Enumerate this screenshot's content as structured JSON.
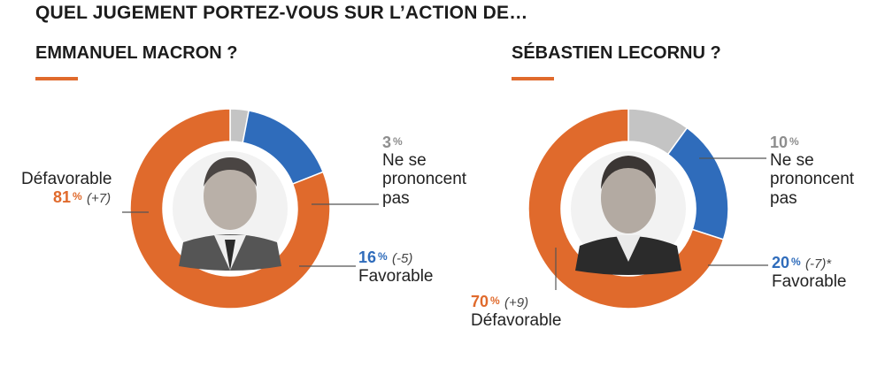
{
  "header": {
    "question": "QUEL JUGEMENT PORTEZ-VOUS SUR L’ACTION DE…"
  },
  "panels": {
    "left": {
      "title": "EMMANUEL MACRON ?"
    },
    "right": {
      "title": "SÉBASTIEN LECORNU ?"
    }
  },
  "colors": {
    "defavorable": "#e06a2c",
    "favorable": "#2f6cbb",
    "nsp": "#c4c4c4"
  },
  "chart_data": [
    {
      "type": "pie",
      "title": "EMMANUEL MACRON ?",
      "categories": [
        "Défavorable",
        "Favorable",
        "Ne se prononcent pas"
      ],
      "values": [
        81,
        16,
        3
      ],
      "changes": [
        "(+7)",
        "(-5)",
        ""
      ],
      "labels": {
        "defavorable": {
          "name": "Défavorable",
          "pct": "81",
          "unit": "%",
          "delta": "(+7)"
        },
        "favorable": {
          "name": "Favorable",
          "pct": "16",
          "unit": "%",
          "delta": "(-5)"
        },
        "nsp": {
          "name_1": "Ne se",
          "name_2": "prononcent",
          "name_3": "pas",
          "pct": "3",
          "unit": "%",
          "delta": ""
        }
      }
    },
    {
      "type": "pie",
      "title": "SÉBASTIEN LECORNU ?",
      "categories": [
        "Défavorable",
        "Favorable",
        "Ne se prononcent pas"
      ],
      "values": [
        70,
        20,
        10
      ],
      "changes": [
        "(+9)",
        "(-7)*",
        ""
      ],
      "labels": {
        "defavorable": {
          "name": "Défavorable",
          "pct": "70",
          "unit": "%",
          "delta": "(+9)"
        },
        "favorable": {
          "name": "Favorable",
          "pct": "20",
          "unit": "%",
          "delta": "(-7)*"
        },
        "nsp": {
          "name_1": "Ne se",
          "name_2": "prononcent",
          "name_3": "pas",
          "pct": "10",
          "unit": "%",
          "delta": ""
        }
      }
    }
  ]
}
